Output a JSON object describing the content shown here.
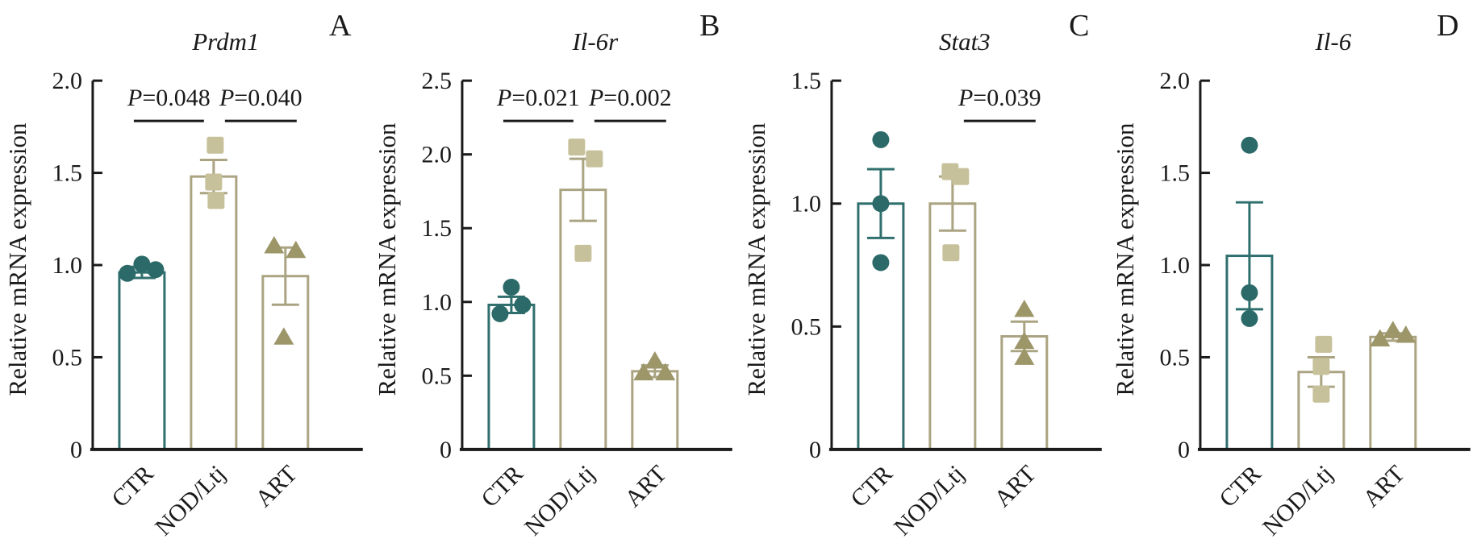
{
  "style": {
    "axis_color": "#1a1a1a",
    "bar_fill": "#ffffff",
    "significance_line_color": "#1a1a1a",
    "groups": [
      {
        "name": "CTR",
        "marker": "circle",
        "fill": "#2b6a68",
        "stroke": "#2f6f6d"
      },
      {
        "name": "NOD/Ltj",
        "marker": "square",
        "fill": "#c7c19b",
        "stroke": "#aaa482"
      },
      {
        "name": "ART",
        "marker": "triangle",
        "fill": "#9c9668",
        "stroke": "#aaa482"
      }
    ]
  },
  "chart_data": [
    {
      "type": "bar",
      "panel": "A",
      "title": "Prdm1",
      "ylabel": "Relative mRNA expression",
      "categories": [
        "CTR",
        "NOD/Ltj",
        "ART"
      ],
      "ylim": [
        0,
        2.0
      ],
      "yticks": [
        0,
        0.5,
        1.0,
        1.5,
        2.0
      ],
      "ytick_labels": [
        "0",
        "0.5",
        "1.0",
        "1.5",
        "2.0"
      ],
      "bars": [
        0.96,
        1.48,
        0.94
      ],
      "sem": [
        0.03,
        0.09,
        0.155
      ],
      "points": [
        [
          [
            -18,
            0.955
          ],
          [
            0,
            1.005
          ],
          [
            17,
            0.975
          ]
        ],
        [
          [
            2,
            1.65
          ],
          [
            0,
            1.45
          ],
          [
            3,
            1.35
          ]
        ],
        [
          [
            -14,
            1.105
          ],
          [
            13,
            1.08
          ],
          [
            -2,
            0.61
          ]
        ]
      ],
      "significance": [
        {
          "groups": [
            "CTR",
            "NOD/Ltj"
          ],
          "label": "P=0.048"
        },
        {
          "groups": [
            "NOD/Ltj",
            "ART"
          ],
          "label": "P=0.040"
        }
      ]
    },
    {
      "type": "bar",
      "panel": "B",
      "title": "Il-6r",
      "ylabel": "Relative mRNA expression",
      "categories": [
        "CTR",
        "NOD/Ltj",
        "ART"
      ],
      "ylim": [
        0,
        2.5
      ],
      "yticks": [
        0,
        0.5,
        1.0,
        1.5,
        2.0,
        2.5
      ],
      "ytick_labels": [
        "0",
        "0.5",
        "1.0",
        "1.5",
        "2.0",
        "2.5"
      ],
      "bars": [
        0.98,
        1.76,
        0.53
      ],
      "sem": [
        0.055,
        0.21,
        0.04
      ],
      "points": [
        [
          [
            0,
            1.1
          ],
          [
            14,
            0.98
          ],
          [
            -14,
            0.92
          ]
        ],
        [
          [
            -8,
            2.05
          ],
          [
            14,
            1.97
          ],
          [
            0,
            1.33
          ]
        ],
        [
          [
            0,
            0.6
          ],
          [
            -14,
            0.52
          ],
          [
            13,
            0.52
          ]
        ]
      ],
      "significance": [
        {
          "groups": [
            "CTR",
            "NOD/Ltj"
          ],
          "label": "P=0.021"
        },
        {
          "groups": [
            "NOD/Ltj",
            "ART"
          ],
          "label": "P=0.002"
        }
      ]
    },
    {
      "type": "bar",
      "panel": "C",
      "title": "Stat3",
      "ylabel": "Relative mRNA expression",
      "categories": [
        "CTR",
        "NOD/Ltj",
        "ART"
      ],
      "ylim": [
        0,
        1.5
      ],
      "yticks": [
        0,
        0.5,
        1.0,
        1.5
      ],
      "ytick_labels": [
        "0",
        "0.5",
        "1.0",
        "1.5"
      ],
      "bars": [
        1.0,
        1.0,
        0.46
      ],
      "sem": [
        0.14,
        0.11,
        0.06
      ],
      "points": [
        [
          [
            0,
            1.26
          ],
          [
            0,
            1.0
          ],
          [
            0,
            0.76
          ]
        ],
        [
          [
            -3,
            1.13
          ],
          [
            10,
            1.11
          ],
          [
            -2,
            0.8
          ]
        ],
        [
          [
            0,
            0.57
          ],
          [
            0,
            0.44
          ],
          [
            0,
            0.375
          ]
        ]
      ],
      "significance": [
        {
          "groups": [
            "NOD/Ltj",
            "ART"
          ],
          "label": "P=0.039"
        }
      ]
    },
    {
      "type": "bar",
      "panel": "D",
      "title": "Il-6",
      "ylabel": "Relative mRNA expression",
      "categories": [
        "CTR",
        "NOD/Ltj",
        "ART"
      ],
      "ylim": [
        0,
        2.0
      ],
      "yticks": [
        0,
        0.5,
        1.0,
        1.5,
        2.0
      ],
      "ytick_labels": [
        "0",
        "0.5",
        "1.0",
        "1.5",
        "2.0"
      ],
      "bars": [
        1.05,
        0.42,
        0.61
      ],
      "sem": [
        0.29,
        0.08,
        0.02
      ],
      "points": [
        [
          [
            0,
            1.65
          ],
          [
            0,
            0.85
          ],
          [
            0,
            0.71
          ]
        ],
        [
          [
            3,
            0.57
          ],
          [
            0,
            0.45
          ],
          [
            0,
            0.3
          ]
        ],
        [
          [
            -16,
            0.6
          ],
          [
            0,
            0.645
          ],
          [
            16,
            0.62
          ]
        ]
      ],
      "significance": []
    }
  ]
}
